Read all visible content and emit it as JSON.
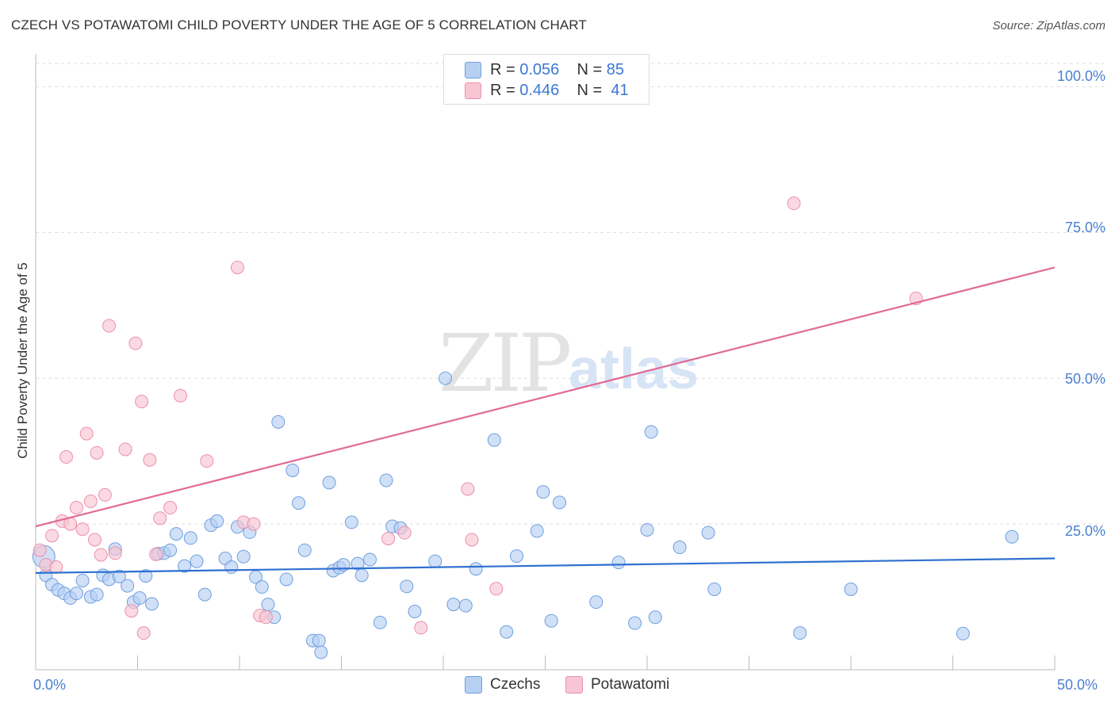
{
  "title": "CZECH VS POTAWATOMI CHILD POVERTY UNDER THE AGE OF 5 CORRELATION CHART",
  "source": "Source: ZipAtlas.com",
  "legend_top": {
    "czechs": {
      "r_label": "R =",
      "r_value": "0.056",
      "n_label": "N =",
      "n_value": "85"
    },
    "potawatomi": {
      "r_label": "R =",
      "r_value": "0.446",
      "n_label": "N =",
      "n_value": "41"
    }
  },
  "legend_bottom": {
    "czechs": "Czechs",
    "potawatomi": "Potawatomi"
  },
  "watermark": {
    "zip": "ZIP",
    "atlas": "atlas"
  },
  "colors": {
    "czechs_fill": "#b7d0f2",
    "czechs_stroke": "#6f9fe0",
    "czechs_line": "#2e6fd0",
    "potawatomi_fill": "#f7c5d3",
    "potawatomi_stroke": "#ec90ac",
    "potawatomi_line": "#e06b95"
  },
  "chart_data": {
    "type": "scatter",
    "title": "CZECH VS POTAWATOMI CHILD POVERTY UNDER THE AGE OF 5 CORRELATION CHART",
    "xlabel": "",
    "ylabel": "Child Poverty Under the Age of 5",
    "xlim": [
      0,
      50
    ],
    "ylim": [
      0,
      100
    ],
    "x_tick_labels": [
      "0.0%",
      "50.0%"
    ],
    "y_ticks": [
      25,
      50,
      75,
      100
    ],
    "y_tick_labels": [
      "25.0%",
      "50.0%",
      "75.0%",
      "100.0%"
    ],
    "grid": true,
    "series": [
      {
        "name": "Czechs",
        "trend": {
          "x": [
            0,
            50
          ],
          "y": [
            16.6,
            19.1
          ]
        },
        "points": [
          {
            "x": 0.4,
            "y": 19.4
          },
          {
            "x": 0.5,
            "y": 16.2
          },
          {
            "x": 0.8,
            "y": 14.6
          },
          {
            "x": 1.1,
            "y": 13.7
          },
          {
            "x": 1.4,
            "y": 13.1
          },
          {
            "x": 1.7,
            "y": 12.3
          },
          {
            "x": 2.0,
            "y": 13.1
          },
          {
            "x": 2.3,
            "y": 15.3
          },
          {
            "x": 2.7,
            "y": 12.5
          },
          {
            "x": 3.0,
            "y": 12.9
          },
          {
            "x": 3.3,
            "y": 16.2
          },
          {
            "x": 3.6,
            "y": 15.5
          },
          {
            "x": 3.9,
            "y": 20.7
          },
          {
            "x": 4.1,
            "y": 16.0
          },
          {
            "x": 4.5,
            "y": 14.4
          },
          {
            "x": 4.8,
            "y": 11.6
          },
          {
            "x": 5.1,
            "y": 12.3
          },
          {
            "x": 5.4,
            "y": 16.1
          },
          {
            "x": 5.7,
            "y": 11.3
          },
          {
            "x": 6.0,
            "y": 19.9
          },
          {
            "x": 6.3,
            "y": 20.0
          },
          {
            "x": 6.6,
            "y": 20.5
          },
          {
            "x": 6.9,
            "y": 23.3
          },
          {
            "x": 7.3,
            "y": 17.8
          },
          {
            "x": 7.6,
            "y": 22.6
          },
          {
            "x": 7.9,
            "y": 18.6
          },
          {
            "x": 8.3,
            "y": 12.9
          },
          {
            "x": 8.6,
            "y": 24.8
          },
          {
            "x": 8.9,
            "y": 25.5
          },
          {
            "x": 9.3,
            "y": 19.1
          },
          {
            "x": 9.6,
            "y": 17.6
          },
          {
            "x": 9.9,
            "y": 24.5
          },
          {
            "x": 10.2,
            "y": 19.4
          },
          {
            "x": 10.5,
            "y": 23.6
          },
          {
            "x": 10.8,
            "y": 15.9
          },
          {
            "x": 11.1,
            "y": 14.2
          },
          {
            "x": 11.4,
            "y": 11.2
          },
          {
            "x": 11.7,
            "y": 9.0
          },
          {
            "x": 11.9,
            "y": 42.5
          },
          {
            "x": 12.3,
            "y": 15.5
          },
          {
            "x": 12.6,
            "y": 34.2
          },
          {
            "x": 12.9,
            "y": 28.6
          },
          {
            "x": 13.2,
            "y": 20.5
          },
          {
            "x": 13.6,
            "y": 5.0
          },
          {
            "x": 13.9,
            "y": 5.0
          },
          {
            "x": 14.0,
            "y": 3.0
          },
          {
            "x": 14.4,
            "y": 32.1
          },
          {
            "x": 14.6,
            "y": 17.0
          },
          {
            "x": 14.9,
            "y": 17.5
          },
          {
            "x": 15.1,
            "y": 18.0
          },
          {
            "x": 15.5,
            "y": 25.3
          },
          {
            "x": 15.8,
            "y": 18.2
          },
          {
            "x": 16.0,
            "y": 16.2
          },
          {
            "x": 16.4,
            "y": 18.9
          },
          {
            "x": 16.9,
            "y": 8.1
          },
          {
            "x": 17.2,
            "y": 32.5
          },
          {
            "x": 17.5,
            "y": 24.6
          },
          {
            "x": 17.9,
            "y": 24.3
          },
          {
            "x": 18.2,
            "y": 14.3
          },
          {
            "x": 18.6,
            "y": 10.0
          },
          {
            "x": 19.6,
            "y": 18.6
          },
          {
            "x": 20.1,
            "y": 50.0
          },
          {
            "x": 20.5,
            "y": 11.2
          },
          {
            "x": 21.1,
            "y": 11.0
          },
          {
            "x": 21.6,
            "y": 17.3
          },
          {
            "x": 22.5,
            "y": 39.4
          },
          {
            "x": 23.1,
            "y": 6.5
          },
          {
            "x": 23.6,
            "y": 19.5
          },
          {
            "x": 24.6,
            "y": 23.8
          },
          {
            "x": 24.9,
            "y": 30.5
          },
          {
            "x": 25.3,
            "y": 8.4
          },
          {
            "x": 25.7,
            "y": 28.7
          },
          {
            "x": 27.5,
            "y": 11.6
          },
          {
            "x": 28.6,
            "y": 18.4
          },
          {
            "x": 29.4,
            "y": 8.0
          },
          {
            "x": 30.0,
            "y": 24.0
          },
          {
            "x": 30.2,
            "y": 40.8
          },
          {
            "x": 30.4,
            "y": 9.0
          },
          {
            "x": 31.6,
            "y": 21.0
          },
          {
            "x": 33.0,
            "y": 23.5
          },
          {
            "x": 33.3,
            "y": 13.8
          },
          {
            "x": 37.5,
            "y": 6.3
          },
          {
            "x": 40.0,
            "y": 13.8
          },
          {
            "x": 45.5,
            "y": 6.2
          },
          {
            "x": 47.9,
            "y": 22.8
          }
        ]
      },
      {
        "name": "Potawatomi",
        "trend": {
          "x": [
            0,
            50
          ],
          "y": [
            24.6,
            69.0
          ]
        },
        "points": [
          {
            "x": 0.2,
            "y": 20.5
          },
          {
            "x": 0.5,
            "y": 18.0
          },
          {
            "x": 0.8,
            "y": 23.0
          },
          {
            "x": 1.0,
            "y": 17.6
          },
          {
            "x": 1.3,
            "y": 25.5
          },
          {
            "x": 1.5,
            "y": 36.5
          },
          {
            "x": 1.7,
            "y": 25.0
          },
          {
            "x": 2.0,
            "y": 27.8
          },
          {
            "x": 2.3,
            "y": 24.1
          },
          {
            "x": 2.5,
            "y": 40.5
          },
          {
            "x": 2.7,
            "y": 28.9
          },
          {
            "x": 2.9,
            "y": 22.3
          },
          {
            "x": 3.0,
            "y": 37.2
          },
          {
            "x": 3.2,
            "y": 19.7
          },
          {
            "x": 3.4,
            "y": 30.0
          },
          {
            "x": 3.6,
            "y": 59.0
          },
          {
            "x": 3.9,
            "y": 20.0
          },
          {
            "x": 4.4,
            "y": 37.8
          },
          {
            "x": 4.7,
            "y": 10.1
          },
          {
            "x": 4.9,
            "y": 56.0
          },
          {
            "x": 5.2,
            "y": 46.0
          },
          {
            "x": 5.3,
            "y": 6.3
          },
          {
            "x": 5.6,
            "y": 36.0
          },
          {
            "x": 5.9,
            "y": 19.8
          },
          {
            "x": 6.1,
            "y": 26.0
          },
          {
            "x": 6.6,
            "y": 27.8
          },
          {
            "x": 7.1,
            "y": 47.0
          },
          {
            "x": 8.4,
            "y": 35.8
          },
          {
            "x": 9.9,
            "y": 69.0
          },
          {
            "x": 10.2,
            "y": 25.3
          },
          {
            "x": 10.7,
            "y": 25.0
          },
          {
            "x": 11.0,
            "y": 9.3
          },
          {
            "x": 11.3,
            "y": 9.0
          },
          {
            "x": 17.3,
            "y": 22.5
          },
          {
            "x": 18.1,
            "y": 23.5
          },
          {
            "x": 18.9,
            "y": 7.2
          },
          {
            "x": 21.2,
            "y": 31.0
          },
          {
            "x": 21.4,
            "y": 22.3
          },
          {
            "x": 22.6,
            "y": 13.9
          },
          {
            "x": 37.2,
            "y": 80.0
          },
          {
            "x": 43.2,
            "y": 63.7
          }
        ]
      }
    ]
  }
}
